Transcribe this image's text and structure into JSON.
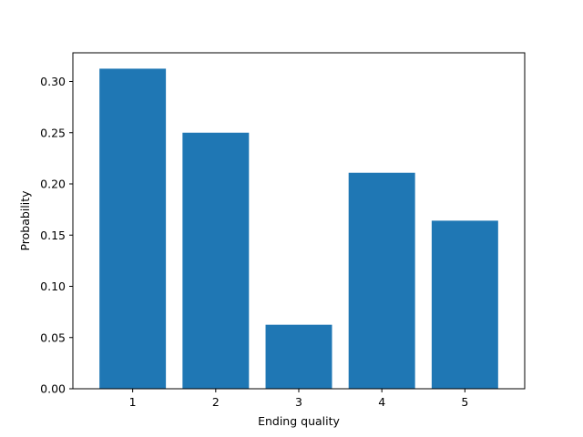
{
  "chart_data": {
    "type": "bar",
    "title": "",
    "xlabel": "Ending quality",
    "ylabel": "Probability",
    "categories": [
      "1",
      "2",
      "3",
      "4",
      "5"
    ],
    "values": [
      0.3125,
      0.25,
      0.0625,
      0.2109,
      0.1641
    ],
    "ylim": [
      0,
      0.328
    ],
    "yticks": [
      0.0,
      0.05,
      0.1,
      0.15,
      0.2,
      0.25,
      0.3
    ],
    "ytick_labels": [
      "0.00",
      "0.05",
      "0.10",
      "0.15",
      "0.20",
      "0.25",
      "0.30"
    ],
    "bar_color": "#1f77b4",
    "grid": false,
    "legend": false
  }
}
